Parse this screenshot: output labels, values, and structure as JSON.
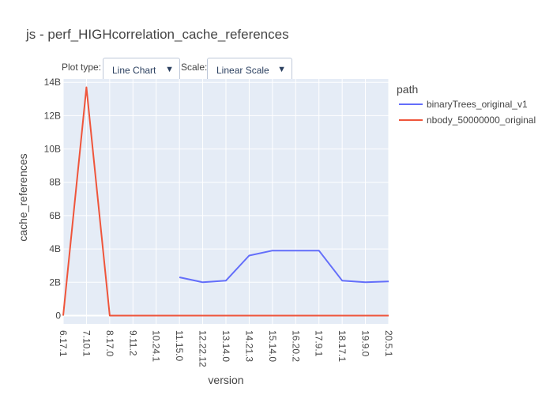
{
  "title": "js - perf_HIGHcorrelation_cache_references",
  "controls": {
    "plot_type_label": "Plot type:",
    "plot_type_value": "Line Chart",
    "scale_label": "Scale:",
    "scale_value": "Linear Scale",
    "arrow_glyph": "▼"
  },
  "chart_data": {
    "type": "line",
    "title": "js - perf_HIGHcorrelation_cache_references",
    "xlabel": "version",
    "ylabel": "cache_references",
    "categories": [
      "6.17.1",
      "7.10.1",
      "8.17.0",
      "9.11.2",
      "10.24.1",
      "11.15.0",
      "12.22.12",
      "13.14.0",
      "14.21.3",
      "15.14.0",
      "16.20.2",
      "17.9.1",
      "18.17.1",
      "19.9.0",
      "20.5.1"
    ],
    "ylim": [
      -500000000.0,
      14200000000.0
    ],
    "yticks": [
      {
        "value": 0,
        "label": "0"
      },
      {
        "value": 2000000000.0,
        "label": "2B"
      },
      {
        "value": 4000000000.0,
        "label": "4B"
      },
      {
        "value": 6000000000.0,
        "label": "6B"
      },
      {
        "value": 8000000000.0,
        "label": "8B"
      },
      {
        "value": 10000000000.0,
        "label": "10B"
      },
      {
        "value": 12000000000.0,
        "label": "12B"
      },
      {
        "value": 14000000000.0,
        "label": "14B"
      }
    ],
    "grid": true,
    "legend": {
      "title": "path",
      "position": "right"
    },
    "series": [
      {
        "name": "binaryTrees_original_v1",
        "color": "#636efa",
        "values": [
          null,
          null,
          null,
          null,
          null,
          2300000000.0,
          2000000000.0,
          2100000000.0,
          3600000000.0,
          3900000000.0,
          3900000000.0,
          3900000000.0,
          2100000000.0,
          2000000000.0,
          2050000000.0
        ]
      },
      {
        "name": "nbody_50000000_original",
        "color": "#ef553b",
        "values": [
          0,
          13700000000.0,
          0,
          0,
          0,
          0,
          0,
          0,
          0,
          0,
          0,
          0,
          0,
          0,
          0
        ]
      }
    ]
  }
}
